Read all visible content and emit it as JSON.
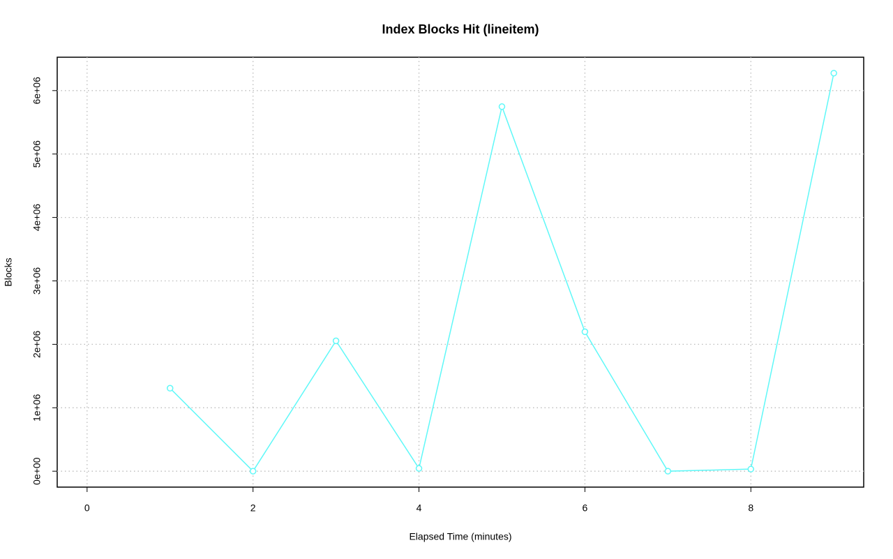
{
  "chart_data": {
    "type": "line",
    "title": "Index Blocks Hit (lineitem)",
    "x_label": "Elapsed Time (minutes)",
    "y_label": "Blocks",
    "x": [
      1,
      2,
      3,
      4,
      5,
      6,
      7,
      8,
      9
    ],
    "series": [
      {
        "color": "#5ff8f8",
        "values": [
          1308000,
          0,
          2055000,
          44000,
          5747000,
          2198000,
          0,
          33000,
          6275000
        ]
      }
    ],
    "xlim": [
      -0.36,
      9.36
    ],
    "xticks": [
      0,
      2,
      4,
      6,
      8
    ],
    "ylim": [
      -251000,
      6526000
    ],
    "yticks": [
      {
        "value": 0,
        "label": "0e+00"
      },
      {
        "value": 1000000,
        "label": "1e+06"
      },
      {
        "value": 2000000,
        "label": "2e+06"
      },
      {
        "value": 3000000,
        "label": "3e+06"
      },
      {
        "value": 4000000,
        "label": "4e+06"
      },
      {
        "value": 5000000,
        "label": "5e+06"
      },
      {
        "value": 6000000,
        "label": "6e+06"
      }
    ],
    "grid": true
  }
}
